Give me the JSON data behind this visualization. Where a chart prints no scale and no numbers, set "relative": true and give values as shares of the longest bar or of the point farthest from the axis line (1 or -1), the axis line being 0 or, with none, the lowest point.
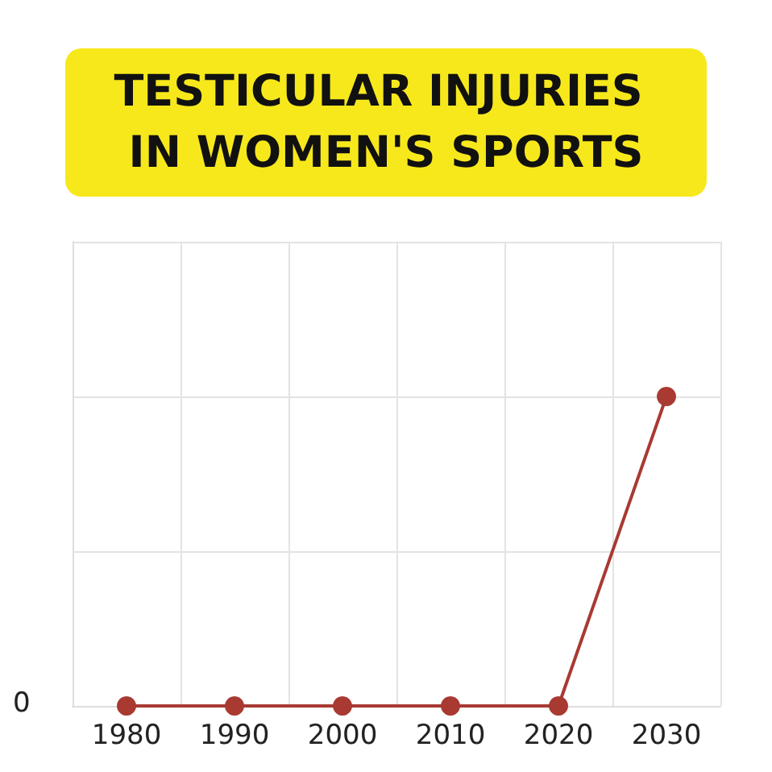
{
  "chart_data": {
    "type": "line",
    "title": "TESTICULAR INJURIES IN WOMEN'S SPORTS",
    "relative": true,
    "categories": [
      "1980",
      "1990",
      "2000",
      "2010",
      "2020",
      "2030"
    ],
    "series": [
      {
        "color": "#a83a32",
        "values": [
          0,
          0,
          0,
          0,
          0,
          1
        ]
      }
    ],
    "annotations": [
      "0"
    ],
    "grid": true,
    "marker": "circle",
    "line_style": "solid"
  }
}
